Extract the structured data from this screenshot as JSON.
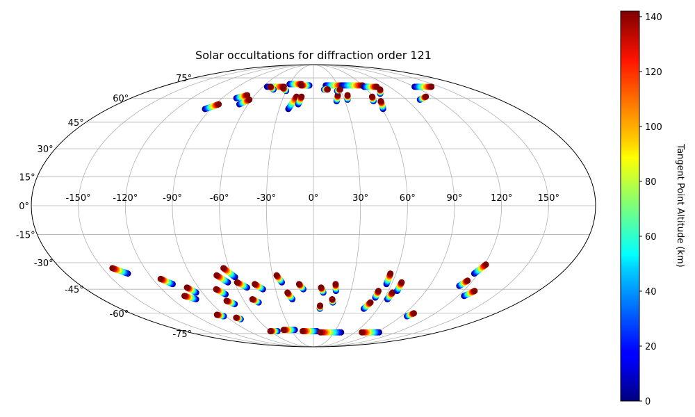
{
  "chart_data": {
    "type": "scatter",
    "projection": "mollweide",
    "title": "Solar occultations for diffraction order 121",
    "grid": true,
    "longitude_tick_labels": [
      "-150°",
      "-120°",
      "-90°",
      "-60°",
      "-30°",
      "0°",
      "30°",
      "60°",
      "90°",
      "120°",
      "150°"
    ],
    "longitude_ticks": [
      -150,
      -120,
      -90,
      -60,
      -30,
      0,
      30,
      60,
      90,
      120,
      150
    ],
    "latitude_tick_labels": [
      "-75°",
      "-60°",
      "-45°",
      "-30°",
      "-15°",
      "0°",
      "15°",
      "30°",
      "45°",
      "60°",
      "75°"
    ],
    "latitude_ticks": [
      -75,
      -60,
      -45,
      -30,
      -15,
      0,
      15,
      30,
      45,
      60,
      75
    ],
    "colorbar": {
      "label": "Tangent Point Altitude (km)",
      "colormap": "jet",
      "range": [
        0,
        142
      ],
      "tick_labels": [
        "0",
        "20",
        "40",
        "60",
        "80",
        "100",
        "120",
        "140"
      ],
      "ticks": [
        0,
        20,
        40,
        60,
        80,
        100,
        120,
        140
      ]
    },
    "tracks": [
      {
        "lon": -135,
        "lat": -36,
        "dlon": -8,
        "dlat": 3
      },
      {
        "lon": -108,
        "lat": -42,
        "dlon": -6,
        "dlat": 3
      },
      {
        "lon": -100,
        "lat": -51,
        "dlon": -7,
        "dlat": 2
      },
      {
        "lon": -95,
        "lat": -47,
        "dlon": -4,
        "dlat": 3
      },
      {
        "lon": -92,
        "lat": -62,
        "dlon": -5,
        "dlat": 1
      },
      {
        "lon": -78,
        "lat": -64,
        "dlon": -3,
        "dlat": 1
      },
      {
        "lon": -72,
        "lat": -48,
        "dlon": -5,
        "dlat": 3
      },
      {
        "lon": -70,
        "lat": -54,
        "dlon": -5,
        "dlat": 2
      },
      {
        "lon": -65,
        "lat": -41,
        "dlon": -6,
        "dlat": 4
      },
      {
        "lon": -58,
        "lat": -38,
        "dlon": -6,
        "dlat": 5
      },
      {
        "lon": -52,
        "lat": -44,
        "dlon": -6,
        "dlat": 3
      },
      {
        "lon": -48,
        "lat": -53,
        "dlon": -4,
        "dlat": 2
      },
      {
        "lon": -40,
        "lat": -45,
        "dlon": -5,
        "dlat": 3
      },
      {
        "lon": -24,
        "lat": -41,
        "dlon": -3,
        "dlat": 4
      },
      {
        "lon": -18,
        "lat": -51,
        "dlon": -3,
        "dlat": 4
      },
      {
        "lon": -8,
        "lat": -45,
        "dlon": -3,
        "dlat": 3
      },
      {
        "lon": 8,
        "lat": -47,
        "dlon": -2,
        "dlat": 3
      },
      {
        "lon": 18,
        "lat": -46,
        "dlon": -1,
        "dlat": 4
      },
      {
        "lon": 17,
        "lat": -53,
        "dlon": -1,
        "dlat": 2
      },
      {
        "lon": 6,
        "lat": -57,
        "dlon": 0,
        "dlat": 2
      },
      {
        "lon": 56,
        "lat": -42,
        "dlon": 0,
        "dlat": 6
      },
      {
        "lon": 52,
        "lat": -50,
        "dlon": 0,
        "dlat": 4
      },
      {
        "lon": 47,
        "lat": -57,
        "dlon": 3,
        "dlat": 4
      },
      {
        "lon": 63,
        "lat": -51,
        "dlon": 1,
        "dlat": 4
      },
      {
        "lon": 67,
        "lat": -46,
        "dlon": 0,
        "dlat": 5
      },
      {
        "lon": 113,
        "lat": -43,
        "dlon": 3,
        "dlat": 3
      },
      {
        "lon": 117,
        "lat": -36,
        "dlon": 4,
        "dlat": 5
      },
      {
        "lon": 125,
        "lat": -49,
        "dlon": 4,
        "dlat": 3
      },
      {
        "lon": 96,
        "lat": -62,
        "dlon": 3,
        "dlat": 2
      },
      {
        "lon": -50,
        "lat": -73,
        "dlon": -10,
        "dlat": 0
      },
      {
        "lon": 5,
        "lat": -73,
        "dlon": -20,
        "dlat": 0
      },
      {
        "lon": 40,
        "lat": -74,
        "dlon": -30,
        "dlat": 0
      },
      {
        "lon": 95,
        "lat": -74,
        "dlon": -25,
        "dlat": 0
      },
      {
        "lon": -25,
        "lat": -72,
        "dlon": -15,
        "dlat": 0
      },
      {
        "lon": -95,
        "lat": 53,
        "dlon": 8,
        "dlat": 3
      },
      {
        "lon": -76,
        "lat": 60,
        "dlon": 8,
        "dlat": 2
      },
      {
        "lon": -68,
        "lat": 56,
        "dlon": 6,
        "dlat": 3
      },
      {
        "lon": -55,
        "lat": 68,
        "dlon": 20,
        "dlat": 0
      },
      {
        "lon": -30,
        "lat": 70,
        "dlon": 15,
        "dlat": 0
      },
      {
        "lon": -22,
        "lat": 53,
        "dlon": 5,
        "dlat": 8
      },
      {
        "lon": -14,
        "lat": 56,
        "dlon": 2,
        "dlat": 5
      },
      {
        "lon": -5,
        "lat": 69,
        "dlon": -10,
        "dlat": 0
      },
      {
        "lon": 22,
        "lat": 58,
        "dlon": 3,
        "dlat": 4
      },
      {
        "lon": 33,
        "lat": 59,
        "dlon": 2,
        "dlat": 3
      },
      {
        "lon": 57,
        "lat": 58,
        "dlon": 2,
        "dlat": 3
      },
      {
        "lon": 61,
        "lat": 53,
        "dlon": 3,
        "dlat": 5
      },
      {
        "lon": 70,
        "lat": 63,
        "dlon": 5,
        "dlat": 3
      },
      {
        "lon": 103,
        "lat": 59,
        "dlon": 10,
        "dlat": 2
      },
      {
        "lon": 15,
        "lat": 69,
        "dlon": 20,
        "dlat": 0
      },
      {
        "lon": 35,
        "lat": 69,
        "dlon": 25,
        "dlat": 0
      },
      {
        "lon": 60,
        "lat": 68,
        "dlon": 15,
        "dlat": 0
      },
      {
        "lon": 120,
        "lat": 68,
        "dlon": 20,
        "dlat": 0
      },
      {
        "lon": -45,
        "lat": 66,
        "dlon": -6,
        "dlat": 2
      },
      {
        "lon": -30,
        "lat": 65,
        "dlon": -5,
        "dlat": 2
      },
      {
        "lon": 12,
        "lat": 66,
        "dlon": 4,
        "dlat": 0
      },
      {
        "lon": 26,
        "lat": 65,
        "dlon": 4,
        "dlat": 1
      }
    ]
  }
}
